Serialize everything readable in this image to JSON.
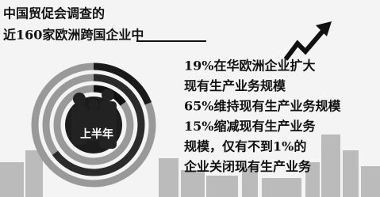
{
  "chart_data": {
    "type": "ring",
    "title_lines": [
      "中国贸促会调查的",
      "近160家欧洲跨国企业中"
    ],
    "center_label": "上半年",
    "series": [
      {
        "label_lines": [
          "19%在华欧洲企业扩大",
          "现有生产业务规模"
        ],
        "values": [
          19
        ],
        "color": "#1a1a1a"
      },
      {
        "label_lines": [
          "65%维持现有生产业务规模"
        ],
        "values": [
          65
        ],
        "color": "#2b2b2b"
      },
      {
        "label_lines": [
          "15%缩减现有生产业务",
          "规模，仅有不到1%的",
          "企业关闭现有生产业务"
        ],
        "values": [
          15
        ],
        "color": "#111111"
      }
    ]
  }
}
